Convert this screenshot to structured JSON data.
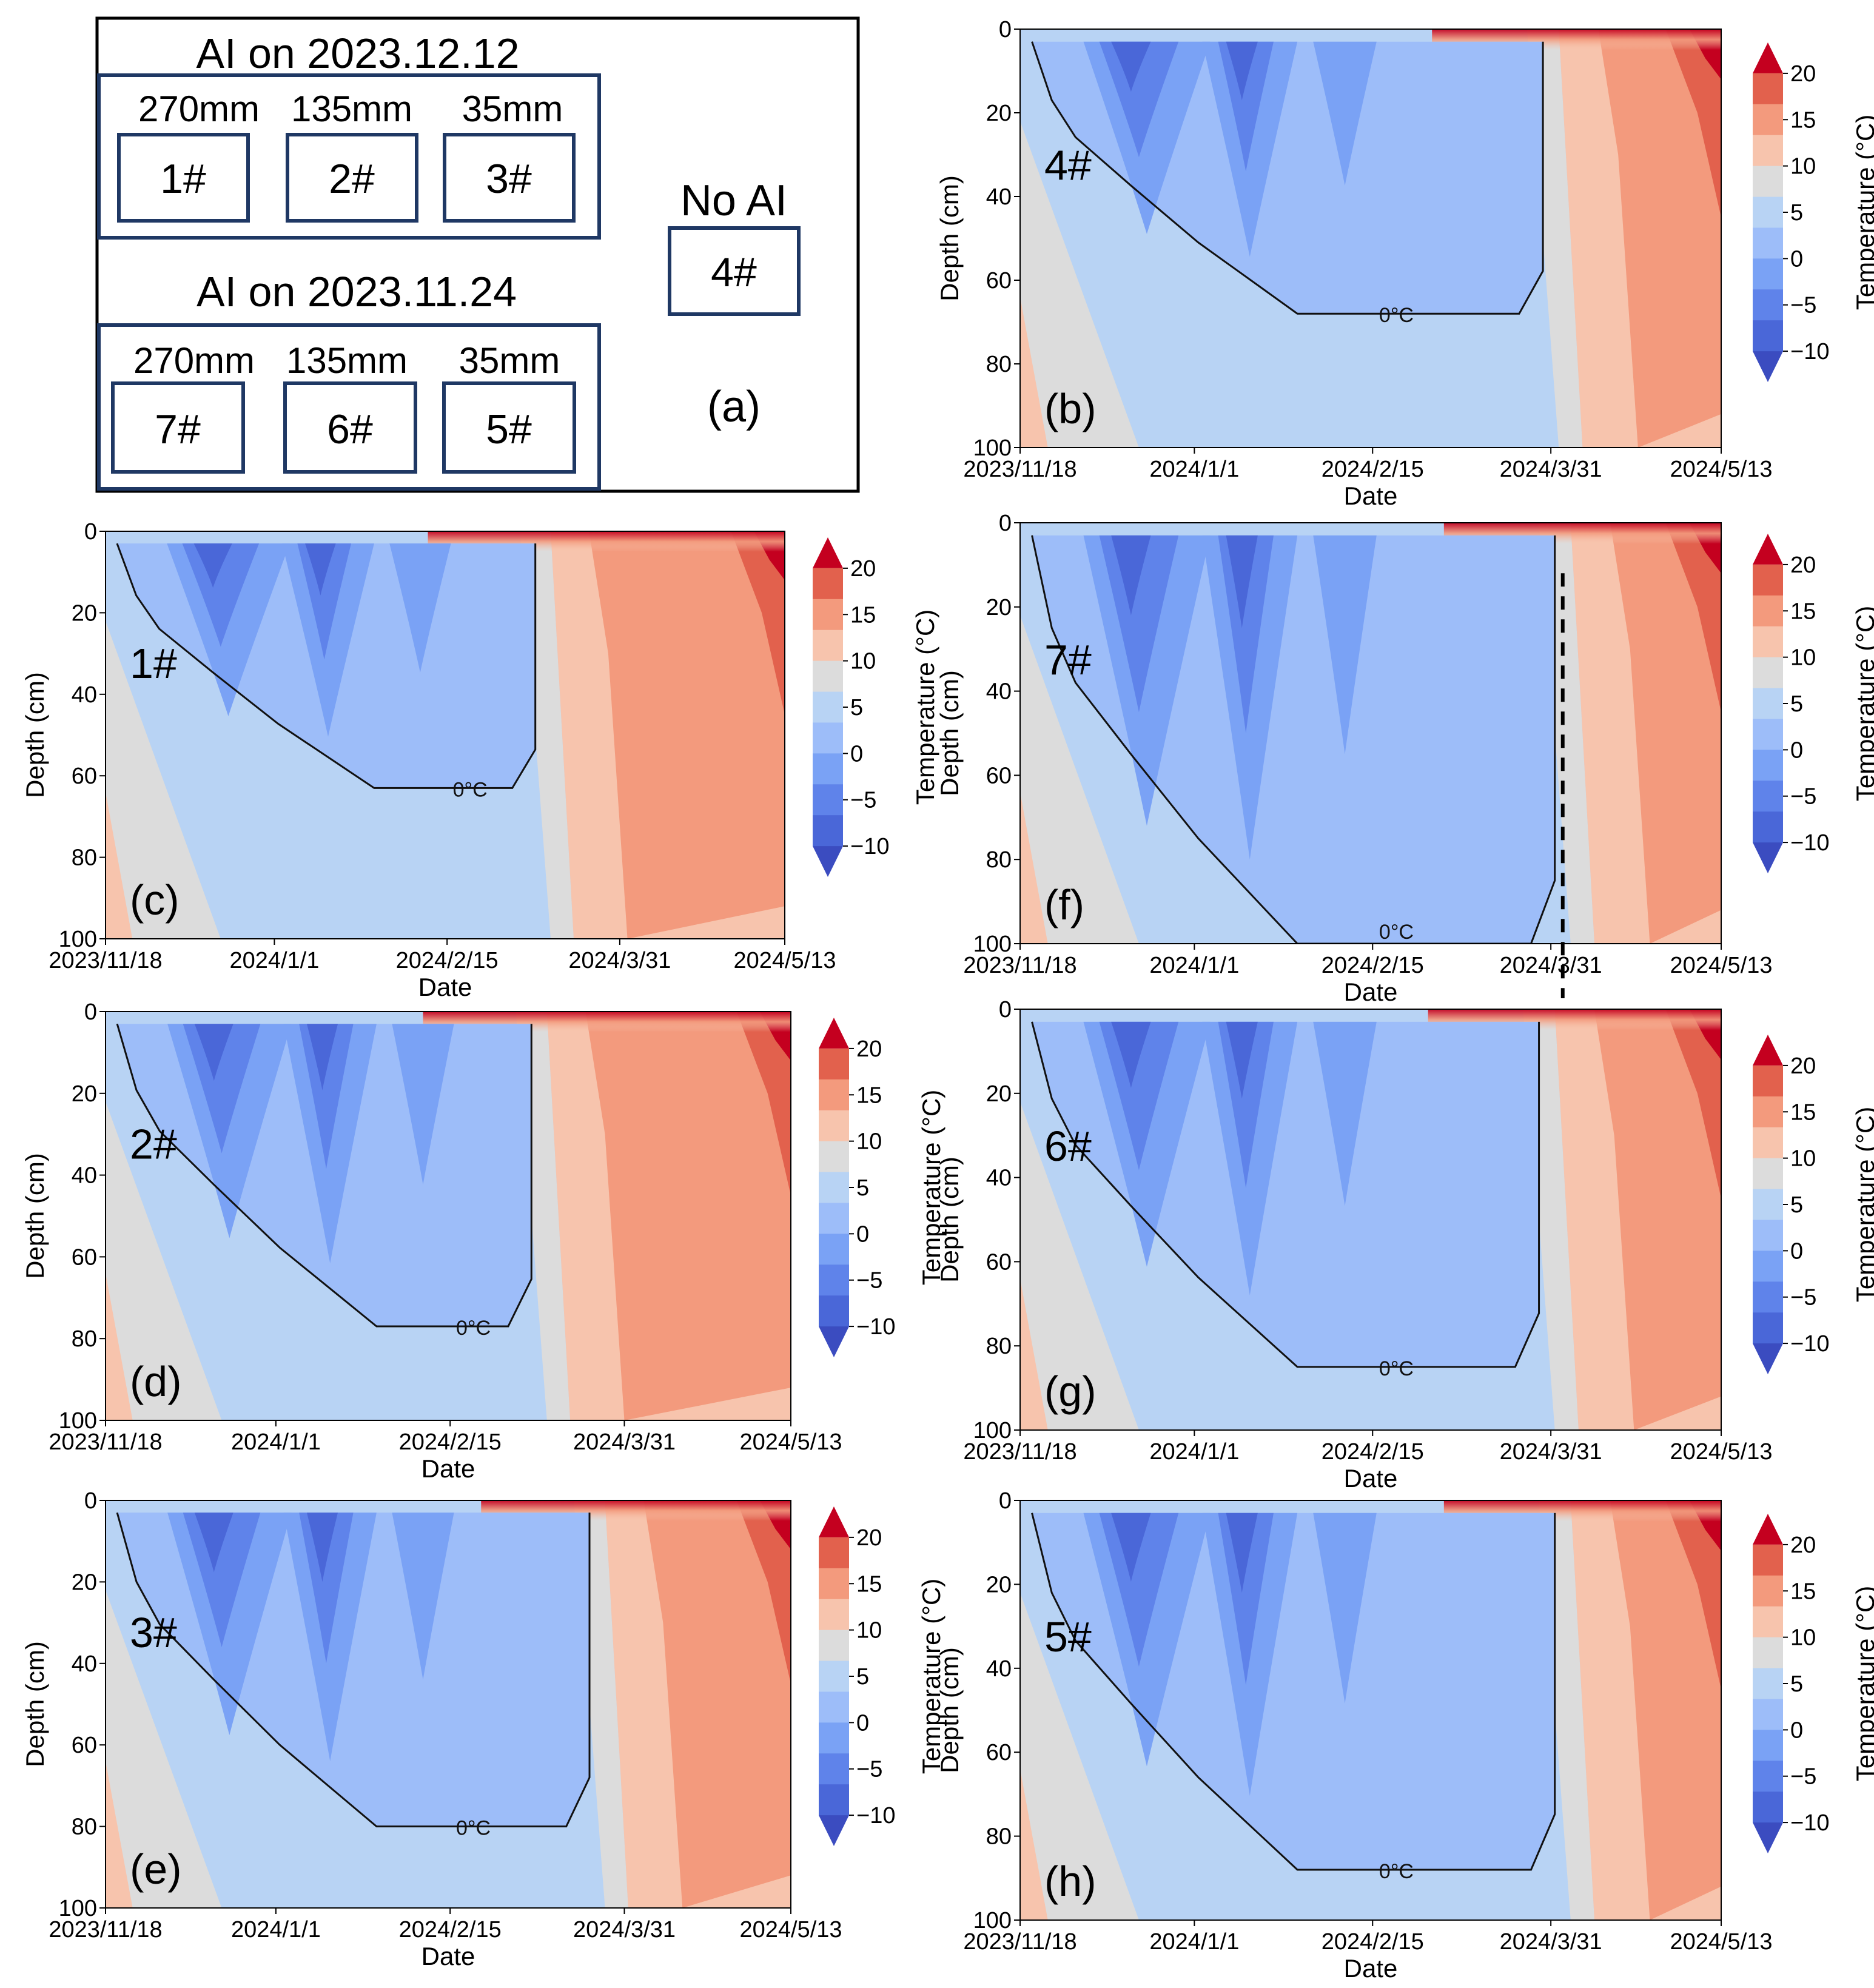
{
  "schematic": {
    "group1_title": "AI on 2023.12.12",
    "group2_title": "AI on 2023.11.24",
    "depths": [
      "270mm",
      "135mm",
      "35mm"
    ],
    "group1_plots": [
      "1#",
      "2#",
      "3#"
    ],
    "group2_plots": [
      "7#",
      "6#",
      "5#"
    ],
    "no_ai_title": "No AI",
    "no_ai_plot": "4#",
    "panel_label": "(a)",
    "colors": {
      "box_border": "#1f3864",
      "frame": "#000000"
    }
  },
  "chart_data": [
    {
      "panel": "(b)",
      "plot": "4#",
      "type": "heatmap",
      "title": "",
      "xlabel": "Date",
      "ylabel": "Depth (cm)",
      "colorbar_label": "Temperature (°C)",
      "x_ticks": [
        "2023/11/18",
        "2024/1/1",
        "2024/2/15",
        "2024/3/31",
        "2024/5/13"
      ],
      "y_ticks": [
        0,
        20,
        40,
        60,
        80,
        100
      ],
      "ylim": [
        100,
        0
      ],
      "colorbar_ticks": [
        20,
        15,
        10,
        5,
        0,
        -5,
        -10
      ],
      "isotherm_label": "0°C",
      "frozen_boundary": {
        "max_depth_cm": 68,
        "thaw_day": 134
      }
    },
    {
      "panel": "(c)",
      "plot": "1#",
      "type": "heatmap",
      "title": "",
      "xlabel": "Date",
      "ylabel": "Depth (cm)",
      "colorbar_label": "Temperature (°C)",
      "x_ticks": [
        "2023/11/18",
        "2024/1/1",
        "2024/2/15",
        "2024/3/31",
        "2024/5/13"
      ],
      "y_ticks": [
        0,
        20,
        40,
        60,
        80,
        100
      ],
      "ylim": [
        100,
        0
      ],
      "colorbar_ticks": [
        20,
        15,
        10,
        5,
        0,
        -5,
        -10
      ],
      "isotherm_label": "0°C",
      "frozen_boundary": {
        "max_depth_cm": 63,
        "thaw_day": 114
      }
    },
    {
      "panel": "(d)",
      "plot": "2#",
      "type": "heatmap",
      "title": "",
      "xlabel": "Date",
      "ylabel": "Depth (cm)",
      "colorbar_label": "Temperature (°C)",
      "x_ticks": [
        "2023/11/18",
        "2024/1/1",
        "2024/2/15",
        "2024/3/31",
        "2024/5/13"
      ],
      "y_ticks": [
        0,
        20,
        40,
        60,
        80,
        100
      ],
      "ylim": [
        100,
        0
      ],
      "colorbar_ticks": [
        20,
        15,
        10,
        5,
        0,
        -5,
        -10
      ],
      "isotherm_label": "0°C",
      "frozen_boundary": {
        "max_depth_cm": 77,
        "thaw_day": 112
      }
    },
    {
      "panel": "(e)",
      "plot": "3#",
      "type": "heatmap",
      "title": "",
      "xlabel": "Date",
      "ylabel": "Depth (cm)",
      "colorbar_label": "Temperature (°C)",
      "x_ticks": [
        "2023/11/18",
        "2024/1/1",
        "2024/2/15",
        "2024/3/31",
        "2024/5/13"
      ],
      "y_ticks": [
        0,
        20,
        40,
        60,
        80,
        100
      ],
      "ylim": [
        100,
        0
      ],
      "colorbar_ticks": [
        20,
        15,
        10,
        5,
        0,
        -5,
        -10
      ],
      "isotherm_label": "0°C",
      "frozen_boundary": {
        "max_depth_cm": 80,
        "thaw_day": 127
      }
    },
    {
      "panel": "(f)",
      "plot": "7#",
      "type": "heatmap",
      "title": "",
      "xlabel": "Date",
      "ylabel": "Depth (cm)",
      "colorbar_label": "Temperature (°C)",
      "x_ticks": [
        "2023/11/18",
        "2024/1/1",
        "2024/2/15",
        "2024/3/31",
        "2024/5/13"
      ],
      "y_ticks": [
        0,
        20,
        40,
        60,
        80,
        100
      ],
      "ylim": [
        100,
        0
      ],
      "colorbar_ticks": [
        20,
        15,
        10,
        5,
        0,
        -5,
        -10
      ],
      "isotherm_label": "0°C",
      "frozen_boundary": {
        "max_depth_cm": 100,
        "thaw_day": 137
      }
    },
    {
      "panel": "(g)",
      "plot": "6#",
      "type": "heatmap",
      "title": "",
      "xlabel": "Date",
      "ylabel": "Depth (cm)",
      "colorbar_label": "Temperature (°C)",
      "x_ticks": [
        "2023/11/18",
        "2024/1/1",
        "2024/2/15",
        "2024/3/31",
        "2024/5/13"
      ],
      "y_ticks": [
        0,
        20,
        40,
        60,
        80,
        100
      ],
      "ylim": [
        100,
        0
      ],
      "colorbar_ticks": [
        20,
        15,
        10,
        5,
        0,
        -5,
        -10
      ],
      "isotherm_label": "0°C",
      "frozen_boundary": {
        "max_depth_cm": 85,
        "thaw_day": 133
      }
    },
    {
      "panel": "(h)",
      "plot": "5#",
      "type": "heatmap",
      "title": "",
      "xlabel": "Date",
      "ylabel": "Depth (cm)",
      "colorbar_label": "Temperature (°C)",
      "x_ticks": [
        "2023/11/18",
        "2024/1/1",
        "2024/2/15",
        "2024/3/31",
        "2024/5/13"
      ],
      "y_ticks": [
        0,
        20,
        40,
        60,
        80,
        100
      ],
      "ylim": [
        100,
        0
      ],
      "colorbar_ticks": [
        20,
        15,
        10,
        5,
        0,
        -5,
        -10
      ],
      "isotherm_label": "0°C",
      "frozen_boundary": {
        "max_depth_cm": 88,
        "thaw_day": 137
      }
    }
  ],
  "colorscale": {
    "levels": [
      -10,
      -7.5,
      -5,
      -2.5,
      0,
      5,
      10,
      15,
      20
    ],
    "colors": [
      "#3b4cc0",
      "#4a67d8",
      "#5f83ea",
      "#7aa2f5",
      "#9dbdf9",
      "#b8d3f4",
      "#dcdcdc",
      "#f7c4ad",
      "#f39a7d",
      "#e2614d",
      "#c4001f"
    ]
  }
}
